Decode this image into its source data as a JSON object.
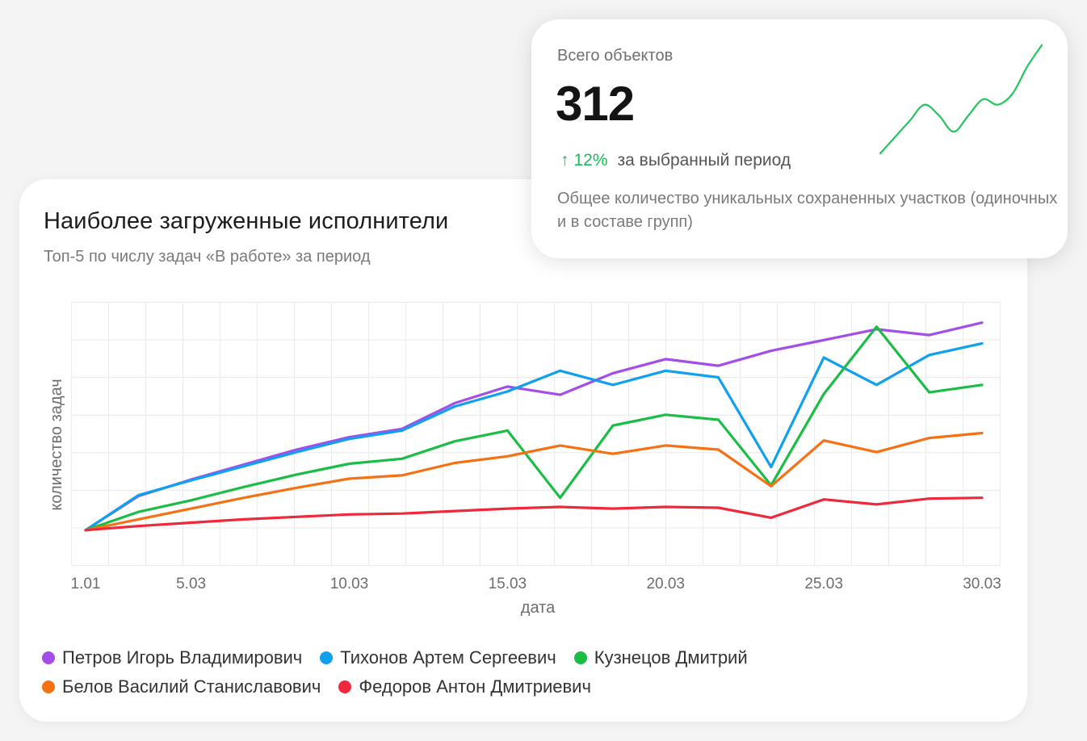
{
  "main_card": {
    "title": "Наиболее загруженные исполнители",
    "subtitle": "Топ-5 по числу задач «В работе» за период"
  },
  "stat_card": {
    "label": "Всего объектов",
    "value": "312",
    "change_arrow": "↑",
    "change_pct": "12%",
    "change_period": "за выбранный период",
    "description": "Общее количество уникальных сохраненных участков (одиночных и в составе групп)",
    "sparkline": [
      2,
      5,
      8,
      11,
      9,
      6,
      9,
      12,
      11,
      13,
      18,
      22
    ],
    "sparkline_color": "#22c55e"
  },
  "chart_data": {
    "type": "line",
    "title": "Наиболее загруженные исполнители",
    "subtitle": "Топ-5 по числу задач «В работе» за период",
    "xlabel": "дата",
    "ylabel": "количество задач",
    "x": [
      "1.01",
      "3.03",
      "5.03",
      "6.03",
      "8.03",
      "10.03",
      "11.03",
      "13.03",
      "15.03",
      "16.03",
      "18.03",
      "20.03",
      "21.03",
      "23.03",
      "25.03",
      "26.03",
      "28.03",
      "30.03"
    ],
    "xticks": [
      "1.01",
      "5.03",
      "10.03",
      "15.03",
      "20.03",
      "25.03",
      "30.03"
    ],
    "ylim": [
      0,
      28
    ],
    "grid": true,
    "legend_position": "bottom",
    "series": [
      {
        "name": "Петров Игорь Владимирович",
        "color": "#a34ee8",
        "values": [
          0.7,
          4.8,
          6.8,
          8.6,
          10.4,
          11.9,
          12.9,
          16.0,
          18.0,
          17.0,
          19.6,
          21.3,
          20.5,
          22.3,
          23.6,
          24.9,
          24.2,
          25.7
        ]
      },
      {
        "name": "Тихонов Артем Сергеевич",
        "color": "#0fa0ee",
        "values": [
          0.7,
          4.9,
          6.7,
          8.4,
          10.1,
          11.7,
          12.7,
          15.6,
          17.4,
          19.9,
          18.2,
          19.9,
          19.1,
          8.3,
          21.5,
          18.2,
          21.8,
          23.2
        ]
      },
      {
        "name": "Кузнецов Дмитрий",
        "color": "#1cbd47",
        "values": [
          0.7,
          2.9,
          4.3,
          5.9,
          7.4,
          8.7,
          9.3,
          11.4,
          12.7,
          4.6,
          13.3,
          14.6,
          14.0,
          6.1,
          17.1,
          25.2,
          17.3,
          18.2
        ]
      },
      {
        "name": "Белов Василий Станиславович",
        "color": "#f57214",
        "values": [
          0.7,
          2.0,
          3.3,
          4.6,
          5.8,
          6.9,
          7.3,
          8.8,
          9.6,
          10.9,
          9.9,
          10.9,
          10.4,
          6.0,
          11.5,
          10.1,
          11.8,
          12.4
        ]
      },
      {
        "name": "Федоров Антон Дмитриевич",
        "color": "#f0283c",
        "values": [
          0.7,
          1.2,
          1.6,
          2.0,
          2.3,
          2.6,
          2.7,
          3.0,
          3.3,
          3.5,
          3.3,
          3.5,
          3.4,
          2.2,
          4.4,
          3.8,
          4.5,
          4.6
        ]
      }
    ]
  }
}
